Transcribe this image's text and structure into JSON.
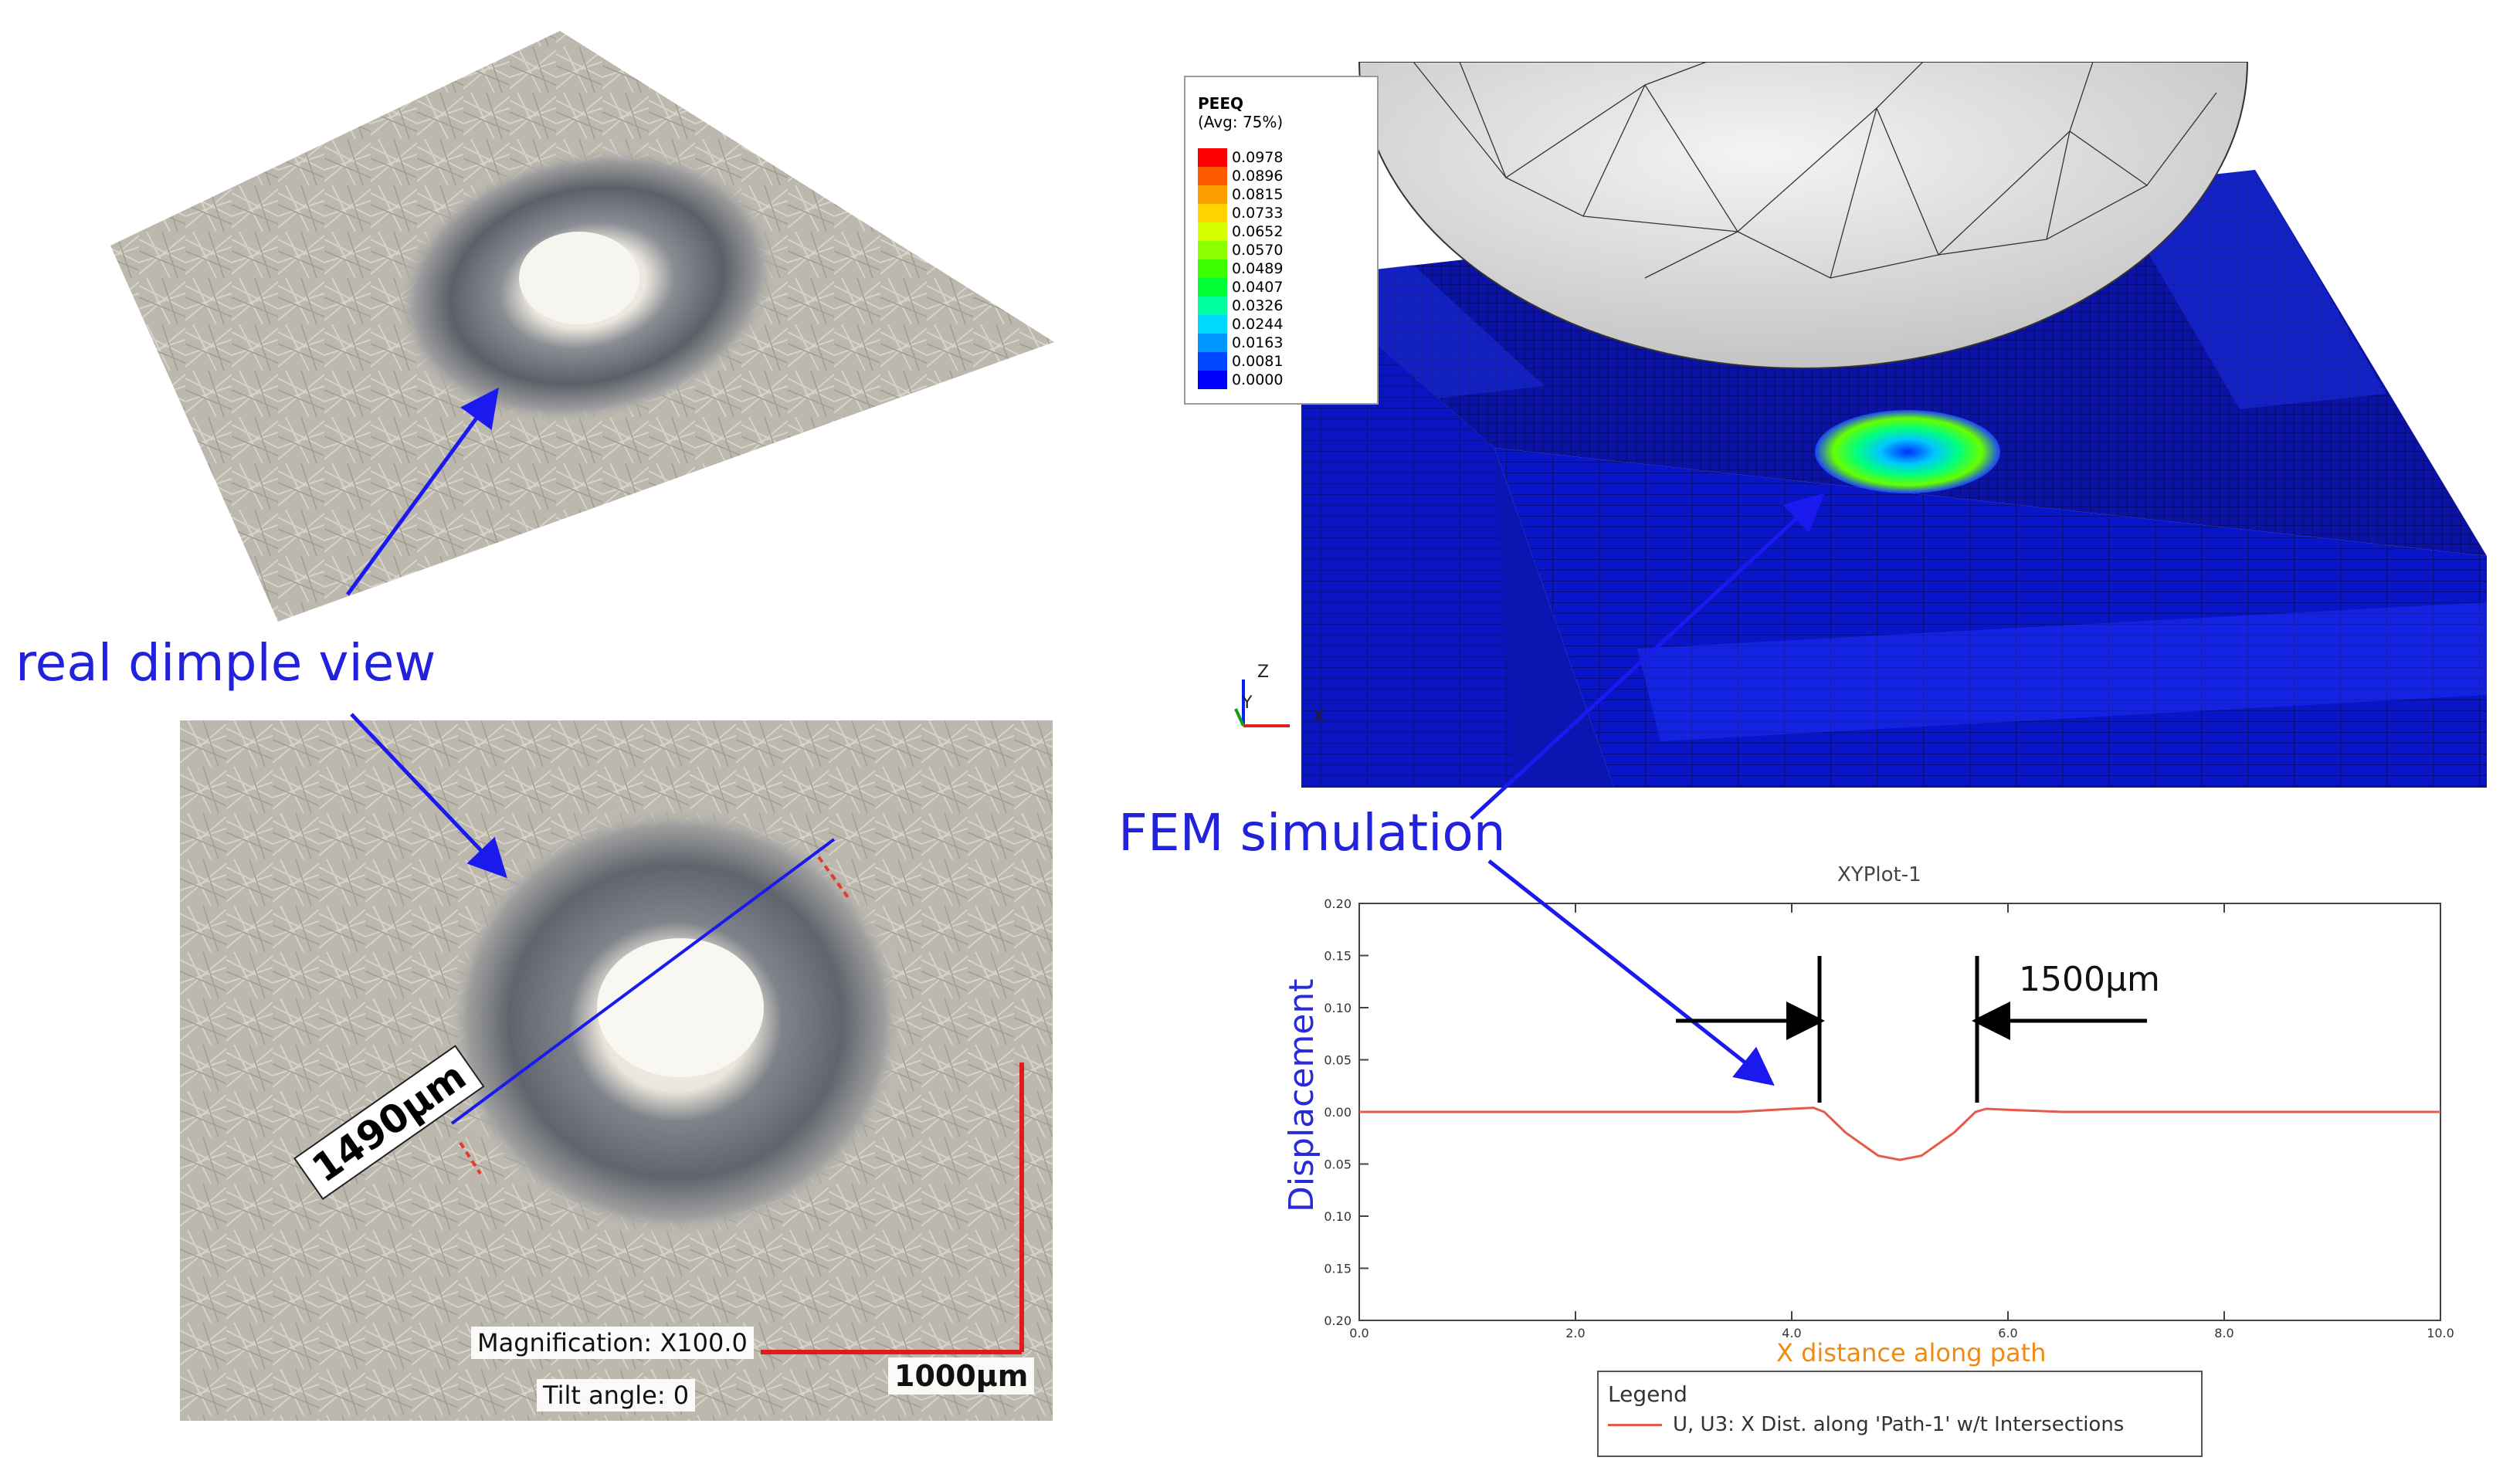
{
  "callouts": {
    "real": "real dimple view",
    "fem": "FEM simulation"
  },
  "micrograph": {
    "diameter": "1490μm",
    "magnification": "Magnification: X100.0",
    "tilt": "Tilt angle: 0",
    "scale_bar": "1000μm"
  },
  "fem_legend": {
    "title": "PEEQ",
    "subtitle": "(Avg: 75%)",
    "levels": [
      "0.0978",
      "0.0896",
      "0.0815",
      "0.0733",
      "0.0652",
      "0.0570",
      "0.0489",
      "0.0407",
      "0.0326",
      "0.0244",
      "0.0163",
      "0.0081",
      "0.0000"
    ],
    "colors": [
      "#ff0000",
      "#ff5a00",
      "#ff9e00",
      "#ffd400",
      "#d6ff00",
      "#8cff00",
      "#3cff00",
      "#00ff34",
      "#00ffa0",
      "#00d9ff",
      "#0096ff",
      "#0046ff",
      "#0000ff"
    ]
  },
  "triad": {
    "z": "Z",
    "y": "Y",
    "x": "X"
  },
  "plot": {
    "title": "XYPlot-1",
    "dimension": "1500μm",
    "legend_title": "Legend",
    "legend_entry": "U, U3: X Dist. along 'Path-1' w/t Intersections"
  },
  "chart_data": {
    "type": "line",
    "title": "XYPlot-1",
    "xlabel": "X distance along path",
    "ylabel": "Displacement",
    "xlim": [
      0,
      10
    ],
    "ylim": [
      -0.2,
      0.2
    ],
    "x_ticks": [
      "0.0",
      "2.0",
      "4.0",
      "6.0",
      "8.0",
      "10.0"
    ],
    "y_ticks": [
      "0.20",
      "0.15",
      "0.10",
      "0.05",
      "0.00",
      "0.05",
      "0.10",
      "0.15",
      "0.20"
    ],
    "series": [
      {
        "name": "U, U3: X Dist. along 'Path-1' w/t Intersections",
        "color": "#e65a4c",
        "x": [
          0,
          2.0,
          3.5,
          4.0,
          4.2,
          4.3,
          4.5,
          4.8,
          5.0,
          5.2,
          5.5,
          5.7,
          5.8,
          6.0,
          6.5,
          8.0,
          10.0
        ],
        "y": [
          0.0,
          0.0,
          0.0,
          0.003,
          0.004,
          0.0,
          -0.02,
          -0.042,
          -0.046,
          -0.042,
          -0.02,
          0.0,
          0.003,
          0.002,
          0.0,
          0.0,
          0.0
        ]
      }
    ]
  }
}
